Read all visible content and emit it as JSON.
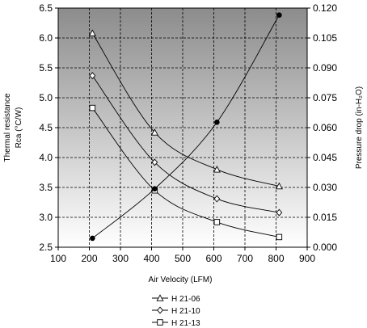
{
  "chart_data": {
    "type": "line",
    "xlabel": "Air Velocity (LFM)",
    "ylabel_left_line1": "Thermal resistance",
    "ylabel_left_line2": "Rca (°C/W)",
    "ylabel_right": "Pressure drop (in-H₂O)",
    "x_ticks": [
      "100",
      "200",
      "300",
      "400",
      "500",
      "600",
      "700",
      "800",
      "900"
    ],
    "y_left_ticks": [
      "2.5",
      "3.0",
      "3.5",
      "4.0",
      "4.5",
      "5.0",
      "5.5",
      "6.0",
      "6.5"
    ],
    "y_right_ticks": [
      "0.000",
      "0.015",
      "0.030",
      "0.045",
      "0.060",
      "0.075",
      "0.090",
      "0.105",
      "0.120"
    ],
    "xlim": [
      100,
      900
    ],
    "ylim_left": [
      2.5,
      6.5
    ],
    "ylim_right": [
      0,
      0.12
    ],
    "grid": true,
    "legend_position": "bottom-center",
    "series": [
      {
        "name": "H 21-06",
        "axis": "left",
        "marker": "triangle",
        "x": [
          210,
          410,
          610,
          810
        ],
        "y": [
          6.08,
          4.42,
          3.8,
          3.52
        ]
      },
      {
        "name": "H 21-10",
        "axis": "left",
        "marker": "diamond",
        "x": [
          210,
          410,
          610,
          810
        ],
        "y": [
          5.37,
          3.92,
          3.31,
          3.08
        ]
      },
      {
        "name": "H 21-13",
        "axis": "left",
        "marker": "square",
        "x": [
          210,
          410,
          610,
          810
        ],
        "y": [
          4.83,
          3.45,
          2.92,
          2.67
        ]
      },
      {
        "name": "",
        "axis": "right",
        "marker": "filled-circle",
        "x": [
          210,
          410,
          610,
          810
        ],
        "y": [
          0.0045,
          0.0293,
          0.0627,
          0.1165
        ]
      }
    ]
  }
}
